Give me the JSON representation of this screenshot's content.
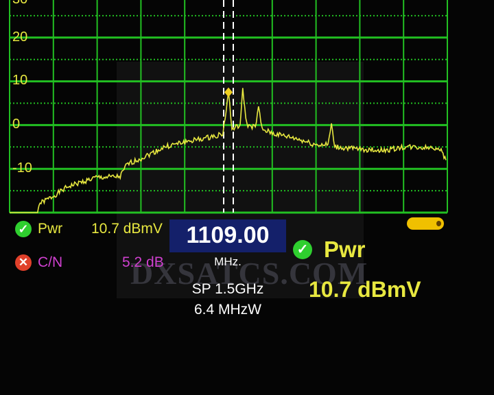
{
  "chart_data": {
    "type": "line",
    "title": "",
    "xlabel": "",
    "ylabel": "",
    "ylim": [
      -20,
      30
    ],
    "xlim_mhz": [
      359,
      1859
    ],
    "y_ticks": [
      "30",
      "20",
      "10",
      "0",
      "-10"
    ],
    "grid": true,
    "trace_color": "#e8e840",
    "grid_color": "#22c022",
    "marker": {
      "frequency_mhz": 1109.0,
      "level_db": 7.5,
      "color": "#f0d020"
    },
    "series": [
      {
        "points": [
          [
            359,
            -20
          ],
          [
            455,
            -20
          ],
          [
            460,
            -18
          ],
          [
            502,
            -16.5
          ],
          [
            561,
            -14
          ],
          [
            655,
            -12
          ],
          [
            738,
            -11.8
          ],
          [
            761,
            -9
          ],
          [
            813,
            -7.5
          ],
          [
            890,
            -5
          ],
          [
            963,
            -3.8
          ],
          [
            1031,
            -3
          ],
          [
            1090,
            -2
          ],
          [
            1109,
            7.5
          ],
          [
            1121,
            -1
          ],
          [
            1149,
            0
          ],
          [
            1158,
            8
          ],
          [
            1172,
            0
          ],
          [
            1201,
            -0.5
          ],
          [
            1212,
            4
          ],
          [
            1224,
            -1
          ],
          [
            1266,
            -2
          ],
          [
            1337,
            -3
          ],
          [
            1408,
            -4.5
          ],
          [
            1450,
            -4.5
          ],
          [
            1462,
            0
          ],
          [
            1473,
            -5
          ],
          [
            1549,
            -5.5
          ],
          [
            1643,
            -5.8
          ],
          [
            1713,
            -5
          ],
          [
            1831,
            -5.2
          ],
          [
            1854,
            -8
          ]
        ]
      }
    ]
  },
  "readings": {
    "pwr_label": "Pwr",
    "pwr_value": "10.7 dBmV",
    "pwr_status": "ok",
    "cn_label": "C/N",
    "cn_value": "5.2 dB",
    "cn_status": "fail",
    "big_pwr_label": "Pwr",
    "big_pwr_value": "10.7 dBmV"
  },
  "center": {
    "frequency": "1109.00",
    "unit": "MHz.",
    "span": "SP 1.5GHz",
    "rbw": "6.4 MHzW"
  },
  "icons": {
    "ok": "check-icon",
    "fail": "x-icon",
    "battery": "battery-icon"
  },
  "watermark": "DXSATCS.COM"
}
